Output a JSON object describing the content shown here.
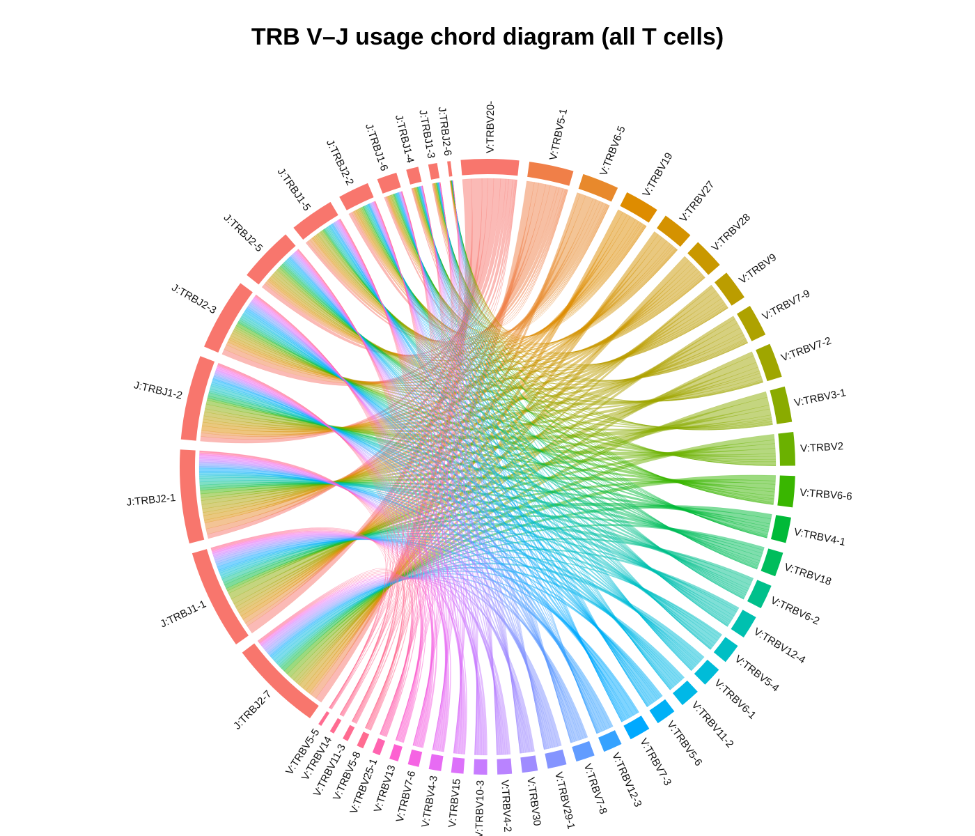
{
  "title": "TRB V–J usage chord diagram (all T cells)",
  "chart_data": {
    "type": "chord",
    "sectors": [
      {
        "label": "V:TRBV20-",
        "group": "V",
        "share": 0.052,
        "color": "#F8766D"
      },
      {
        "label": "V:TRBV5-1",
        "group": "V",
        "share": 0.04,
        "color": "#F07F48"
      },
      {
        "label": "V:TRBV6-5",
        "group": "V",
        "share": 0.033,
        "color": "#E8892C"
      },
      {
        "label": "V:TRBV19",
        "group": "V",
        "share": 0.031,
        "color": "#DE8C00"
      },
      {
        "label": "V:TRBV27",
        "group": "V",
        "share": 0.028,
        "color": "#D49200"
      },
      {
        "label": "V:TRBV28",
        "group": "V",
        "share": 0.028,
        "color": "#C99800"
      },
      {
        "label": "V:TRBV9",
        "group": "V",
        "share": 0.027,
        "color": "#BB9D00"
      },
      {
        "label": "V:TRBV7-9",
        "group": "V",
        "share": 0.029,
        "color": "#AEA200"
      },
      {
        "label": "V:TRBV7-2",
        "group": "V",
        "share": 0.031,
        "color": "#9FA600"
      },
      {
        "label": "V:TRBV3-1",
        "group": "V",
        "share": 0.032,
        "color": "#8AAB00"
      },
      {
        "label": "V:TRBV2",
        "group": "V",
        "share": 0.03,
        "color": "#6BB100"
      },
      {
        "label": "V:TRBV6-6",
        "group": "V",
        "share": 0.028,
        "color": "#39B600"
      },
      {
        "label": "V:TRBV4-1",
        "group": "V",
        "share": 0.023,
        "color": "#00BA38"
      },
      {
        "label": "V:TRBV18",
        "group": "V",
        "share": 0.022,
        "color": "#00BD5C"
      },
      {
        "label": "V:TRBV6-2",
        "group": "V",
        "share": 0.022,
        "color": "#00C08B"
      },
      {
        "label": "V:TRBV12-4",
        "group": "V",
        "share": 0.021,
        "color": "#00C0AF"
      },
      {
        "label": "V:TRBV5-4",
        "group": "V",
        "share": 0.018,
        "color": "#00BFC4"
      },
      {
        "label": "V:TRBV6-1",
        "group": "V",
        "share": 0.018,
        "color": "#00BCD8"
      },
      {
        "label": "V:TRBV11-2",
        "group": "V",
        "share": 0.018,
        "color": "#00B8E7"
      },
      {
        "label": "V:TRBV5-6",
        "group": "V",
        "share": 0.018,
        "color": "#00B0F6"
      },
      {
        "label": "V:TRBV7-3",
        "group": "V",
        "share": 0.019,
        "color": "#00A9FF"
      },
      {
        "label": "V:TRBV12-3",
        "group": "V",
        "share": 0.017,
        "color": "#35A2FF"
      },
      {
        "label": "V:TRBV7-8",
        "group": "V",
        "share": 0.017,
        "color": "#619CFF"
      },
      {
        "label": "V:TRBV29-1",
        "group": "V",
        "share": 0.017,
        "color": "#8494FF"
      },
      {
        "label": "V:TRBV30",
        "group": "V",
        "share": 0.014,
        "color": "#9F8CFF"
      },
      {
        "label": "V:TRBV4-2",
        "group": "V",
        "share": 0.013,
        "color": "#B983FF"
      },
      {
        "label": "V:TRBV10-3",
        "group": "V",
        "share": 0.012,
        "color": "#C77CFF"
      },
      {
        "label": "V:TRBV15",
        "group": "V",
        "share": 0.011,
        "color": "#DC71FA"
      },
      {
        "label": "V:TRBV4-3",
        "group": "V",
        "share": 0.011,
        "color": "#E76BF3"
      },
      {
        "label": "V:TRBV7-6",
        "group": "V",
        "share": 0.01,
        "color": "#F564E3"
      },
      {
        "label": "V:TRBV13",
        "group": "V",
        "share": 0.008,
        "color": "#FD61D1"
      },
      {
        "label": "V:TRBV25-1",
        "group": "V",
        "share": 0.007,
        "color": "#FF64B0"
      },
      {
        "label": "V:TRBV5-8",
        "group": "V",
        "share": 0.006,
        "color": "#FF6C91"
      },
      {
        "label": "V:TRBV11-3",
        "group": "V",
        "share": 0.005,
        "color": "#FF6C91"
      },
      {
        "label": "V:TRBV14",
        "group": "V",
        "share": 0.004,
        "color": "#FF6C91"
      },
      {
        "label": "V:TRBV5-5",
        "group": "V",
        "share": 0.003,
        "color": "#FF6C91"
      },
      {
        "label": "J:TRBJ2-7",
        "group": "J",
        "share": 0.084,
        "color": "#F8766D"
      },
      {
        "label": "J:TRBJ1-1",
        "group": "J",
        "share": 0.09,
        "color": "#F8766D"
      },
      {
        "label": "J:TRBJ2-1",
        "group": "J",
        "share": 0.084,
        "color": "#F8766D"
      },
      {
        "label": "J:TRBJ1-2",
        "group": "J",
        "share": 0.076,
        "color": "#F8766D"
      },
      {
        "label": "J:TRBJ2-3",
        "group": "J",
        "share": 0.065,
        "color": "#F8766D"
      },
      {
        "label": "J:TRBJ2-5",
        "group": "J",
        "share": 0.05,
        "color": "#F8766D"
      },
      {
        "label": "J:TRBJ1-5",
        "group": "J",
        "share": 0.04,
        "color": "#F8766D"
      },
      {
        "label": "J:TRBJ2-2",
        "group": "J",
        "share": 0.028,
        "color": "#F8766D"
      },
      {
        "label": "J:TRBJ1-6",
        "group": "J",
        "share": 0.018,
        "color": "#F8766D"
      },
      {
        "label": "J:TRBJ1-4",
        "group": "J",
        "share": 0.011,
        "color": "#F8766D"
      },
      {
        "label": "J:TRBJ1-3",
        "group": "J",
        "share": 0.008,
        "color": "#F8766D"
      },
      {
        "label": "J:TRBJ2-6",
        "group": "J",
        "share": 0.003,
        "color": "#F8766D"
      }
    ]
  }
}
